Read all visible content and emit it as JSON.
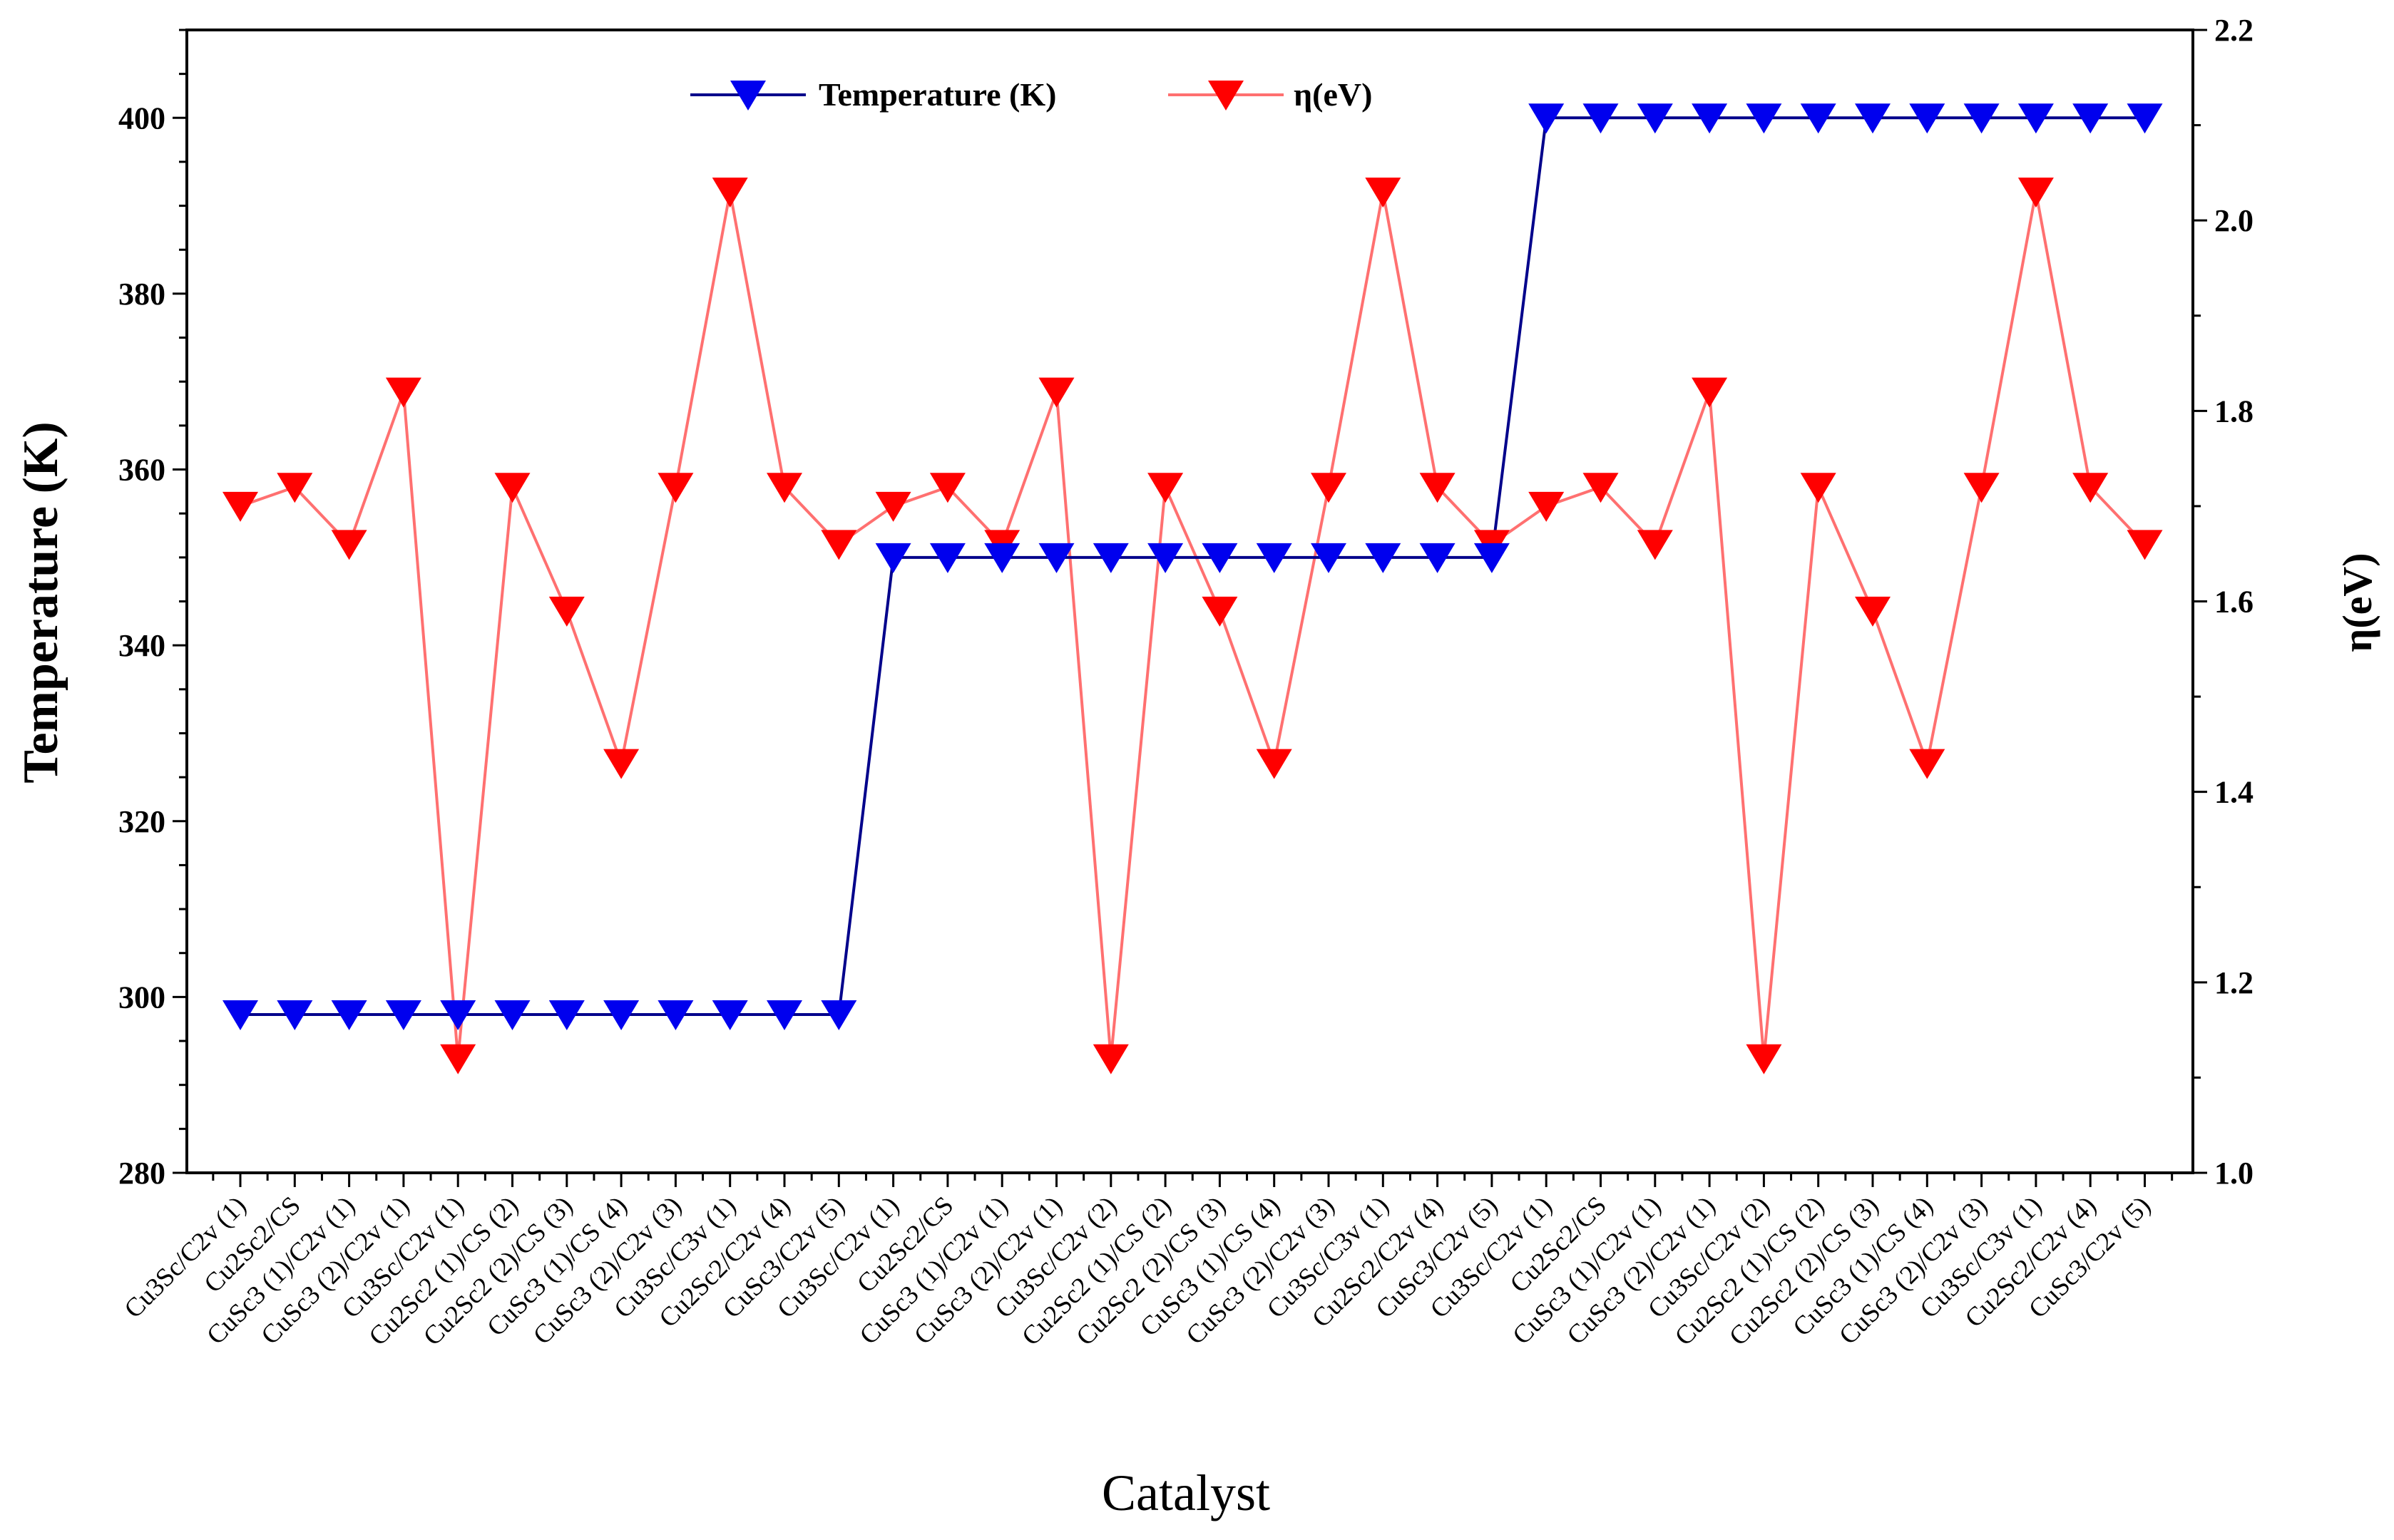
{
  "chart_data": {
    "type": "line",
    "title": "",
    "xlabel": "Catalyst",
    "ylabel": "Temperature (K)",
    "y2label": "η(eV)",
    "ylim": [
      280,
      410
    ],
    "y2lim": [
      1.0,
      2.2
    ],
    "yticks": [
      "280",
      "300",
      "320",
      "340",
      "360",
      "380",
      "400"
    ],
    "y2ticks": [
      "1.0",
      "1.2",
      "1.4",
      "1.6",
      "1.8",
      "2.0",
      "2.2"
    ],
    "grid": false,
    "legend": "top-center",
    "categories": [
      "Cu3Sc/C2v (1)",
      "Cu2Sc2/CS",
      "CuSc3 (1)/C2v (1)",
      "CuSc3 (2)/C2v (1)",
      "Cu3Sc/C2v (1)",
      "Cu2Sc2 (1)/CS (2)",
      "Cu2Sc2 (2)/CS (3)",
      "CuSc3 (1)/CS (4)",
      "CuSc3 (2)/C2v (3)",
      "Cu3Sc/C3v (1)",
      "Cu2Sc2/C2v (4)",
      "CuSc3/C2v (5)",
      "Cu3Sc/C2v (1)",
      "Cu2Sc2/CS",
      "CuSc3 (1)/C2v (1)",
      "CuSc3 (2)/C2v (1)",
      "Cu3Sc/C2v (2)",
      "Cu2Sc2 (1)/CS (2)",
      "Cu2Sc2 (2)/CS (3)",
      "CuSc3 (1)/CS (4)",
      "CuSc3 (2)/C2v (3)",
      "Cu3Sc/C3v (1)",
      "Cu2Sc2/C2v (4)",
      "CuSc3/C2v (5)",
      "Cu3Sc/C2v (1)",
      "Cu2Sc2/CS",
      "CuSc3 (1)/C2v (1)",
      "CuSc3 (2)/C2v (1)",
      "Cu3Sc/C2v (2)",
      "Cu2Sc2 (1)/CS (2)",
      "Cu2Sc2 (2)/CS (3)",
      "CuSc3 (1)/CS (4)",
      "CuSc3 (2)/C2v (3)",
      "Cu3Sc/C3v (1)",
      "Cu2Sc2/C2v (4)",
      "CuSc3/C2v (5)"
    ],
    "series": [
      {
        "name": "Temperature (K)",
        "axis": "left",
        "color": "#0000ee",
        "line_color": "#00008b",
        "values": [
          298,
          298,
          298,
          298,
          298,
          298,
          298,
          298,
          298,
          298,
          298,
          298,
          350,
          350,
          350,
          350,
          350,
          350,
          350,
          350,
          350,
          350,
          350,
          350,
          400,
          400,
          400,
          400,
          400,
          400,
          400,
          400,
          400,
          400,
          400,
          400
        ]
      },
      {
        "name": "η(eV)",
        "axis": "right",
        "color": "#ff0000",
        "line_color": "#ff7070",
        "values": [
          1.7,
          1.72,
          1.66,
          1.82,
          1.12,
          1.72,
          1.59,
          1.43,
          1.72,
          2.03,
          1.72,
          1.66,
          1.7,
          1.72,
          1.66,
          1.82,
          1.12,
          1.72,
          1.59,
          1.43,
          1.72,
          2.03,
          1.72,
          1.66,
          1.7,
          1.72,
          1.66,
          1.82,
          1.12,
          1.72,
          1.59,
          1.43,
          1.72,
          2.03,
          1.72,
          1.66
        ]
      }
    ]
  }
}
